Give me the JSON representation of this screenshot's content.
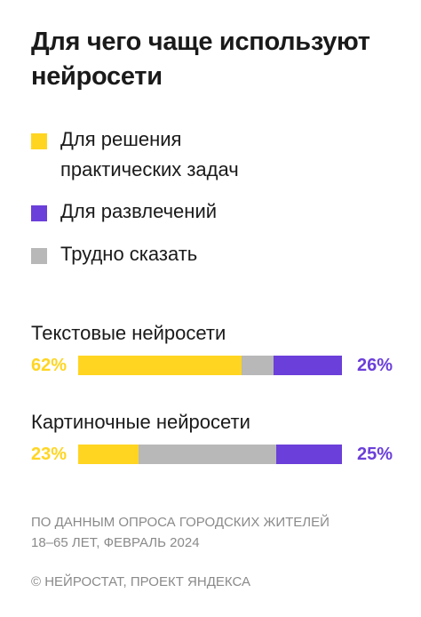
{
  "title": "Для чего чаще используют нейросети",
  "colors": {
    "practical": "#FFD521",
    "entertainment": "#6B3FD9",
    "unsure": "#B8B8B8"
  },
  "legend": [
    {
      "key": "practical",
      "label": "Для решения\nпрактических задач"
    },
    {
      "key": "entertainment",
      "label": "Для развлечений"
    },
    {
      "key": "unsure",
      "label": "Трудно сказать"
    }
  ],
  "chart_data": {
    "type": "bar",
    "stacked": true,
    "orientation": "horizontal",
    "categories": [
      "Текстовые нейросети",
      "Картиночные нейросети"
    ],
    "series": [
      {
        "name": "Для решения практических задач",
        "values": [
          62,
          23
        ],
        "labels": [
          "62%",
          "23%"
        ]
      },
      {
        "name": "Трудно сказать",
        "values": [
          12,
          52
        ]
      },
      {
        "name": "Для развлечений",
        "values": [
          26,
          25
        ],
        "labels": [
          "26%",
          "25%"
        ]
      }
    ],
    "xlim": [
      0,
      100
    ]
  },
  "footnote": "ПО ДАННЫМ ОПРОСА ГОРОДСКИХ ЖИТЕЛЕЙ\n18–65 ЛЕТ, ФЕВРАЛЬ 2024",
  "credit": "© НЕЙРОСТАТ, ПРОЕКТ ЯНДЕКСА"
}
